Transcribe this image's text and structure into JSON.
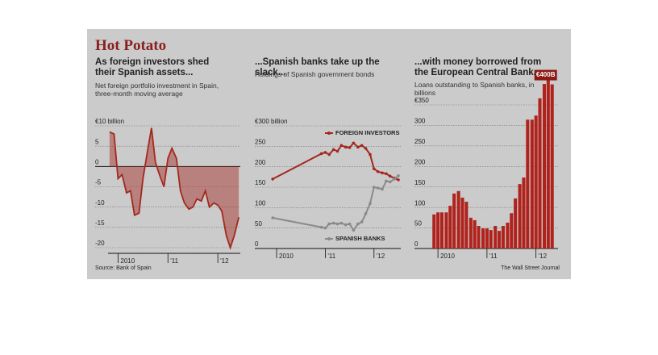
{
  "header": {
    "title": "Hot Potato"
  },
  "chart_data": [
    {
      "type": "area",
      "title": "As foreign investors shed their Spanish assets...",
      "subtitle": "Net foreign portfolio investment in Spain, three-month moving average",
      "color": "#a3281f",
      "x": [
        2009.83,
        2009.92,
        2010.0,
        2010.08,
        2010.17,
        2010.25,
        2010.33,
        2010.42,
        2010.5,
        2010.58,
        2010.67,
        2010.75,
        2010.83,
        2010.92,
        2011.0,
        2011.08,
        2011.17,
        2011.25,
        2011.33,
        2011.42,
        2011.5,
        2011.58,
        2011.67,
        2011.75,
        2011.83,
        2011.92,
        2012.0,
        2012.08,
        2012.17,
        2012.25,
        2012.33,
        2012.42
      ],
      "values": [
        8.5,
        8,
        -3,
        -2,
        -6.5,
        -6,
        -12,
        -11.5,
        -3,
        3,
        9.5,
        1,
        -2,
        -5,
        2,
        4.5,
        2,
        -6,
        -9,
        -10.5,
        -10,
        -8,
        -8.5,
        -6,
        -10,
        -9,
        -9.5,
        -11,
        -17,
        -20,
        -17,
        -12.5
      ],
      "xlim": [
        2009.8,
        2012.45
      ],
      "xticks": [
        {
          "value": 2010,
          "label": "2010"
        },
        {
          "value": 2011,
          "label": "'11"
        },
        {
          "value": 2012,
          "label": "'12"
        }
      ],
      "ylim": [
        -20,
        10
      ],
      "yticks": [
        {
          "value": 10,
          "label": "€10 billion"
        },
        5,
        0,
        -5,
        -10,
        -15,
        -20
      ],
      "grid": true
    },
    {
      "type": "line",
      "title": "...Spanish banks take up the slack...",
      "subtitle": "Holdings of Spanish government bonds",
      "x": [
        2009.92,
        2010.92,
        2011.0,
        2011.08,
        2011.17,
        2011.25,
        2011.33,
        2011.42,
        2011.5,
        2011.58,
        2011.67,
        2011.75,
        2011.83,
        2011.92,
        2012.0,
        2012.08,
        2012.17,
        2012.25,
        2012.33,
        2012.42,
        2012.5
      ],
      "series": [
        {
          "name": "FOREIGN INVESTORS",
          "color": "#a3281f",
          "values": [
            170,
            232,
            235,
            230,
            242,
            238,
            252,
            248,
            247,
            258,
            248,
            252,
            245,
            230,
            195,
            188,
            185,
            183,
            177,
            172,
            168
          ]
        },
        {
          "name": "SPANISH BANKS",
          "color": "#8a8a8a",
          "values": [
            75,
            52,
            50,
            60,
            62,
            60,
            62,
            58,
            60,
            45,
            60,
            65,
            85,
            110,
            150,
            148,
            145,
            165,
            163,
            170,
            178
          ]
        }
      ],
      "xlim": [
        2009.9,
        2012.55
      ],
      "xticks": [
        {
          "value": 2010,
          "label": "2010"
        },
        {
          "value": 2011,
          "label": "'11"
        },
        {
          "value": 2012,
          "label": "'12"
        }
      ],
      "ylim": [
        0,
        300
      ],
      "yticks": [
        {
          "value": 300,
          "label": "€300 billion"
        },
        250,
        200,
        150,
        100,
        50,
        0
      ],
      "grid": true
    },
    {
      "type": "bar",
      "title": "...with money borrowed from the European Central Bank.",
      "subtitle": "Loans outstanding to Spanish banks, in billions",
      "color": "#b0221c",
      "x": [
        2009.92,
        2010.0,
        2010.08,
        2010.17,
        2010.25,
        2010.33,
        2010.42,
        2010.5,
        2010.58,
        2010.67,
        2010.75,
        2010.83,
        2010.92,
        2011.0,
        2011.08,
        2011.17,
        2011.25,
        2011.33,
        2011.42,
        2011.5,
        2011.58,
        2011.67,
        2011.75,
        2011.83,
        2011.92,
        2012.0,
        2012.08,
        2012.17,
        2012.25,
        2012.33
      ],
      "values": [
        83,
        88,
        88,
        88,
        104,
        134,
        140,
        124,
        114,
        75,
        69,
        55,
        49,
        49,
        45,
        55,
        43,
        55,
        63,
        86,
        122,
        157,
        173,
        314,
        314,
        324,
        366,
        401,
        410,
        400
      ],
      "value_labels": [
        null,
        null,
        null,
        null,
        null,
        null,
        null,
        null,
        null,
        null,
        null,
        null,
        null,
        null,
        null,
        null,
        null,
        null,
        null,
        null,
        null,
        null,
        null,
        null,
        null,
        null,
        null,
        null,
        null,
        "€400B"
      ],
      "xlim": [
        2009.85,
        2012.45
      ],
      "xticks": [
        {
          "value": 2010,
          "label": "2010"
        },
        {
          "value": 2011,
          "label": "'11"
        },
        {
          "value": 2012,
          "label": "'12"
        }
      ],
      "ylim": [
        0,
        420
      ],
      "yticks": [
        {
          "value": 350,
          "label": "€350"
        },
        300,
        250,
        200,
        150,
        100,
        50,
        0
      ],
      "grid": true
    }
  ],
  "footer": {
    "source": "Source: Bank of Spain",
    "credit": "The Wall Street Journal"
  }
}
